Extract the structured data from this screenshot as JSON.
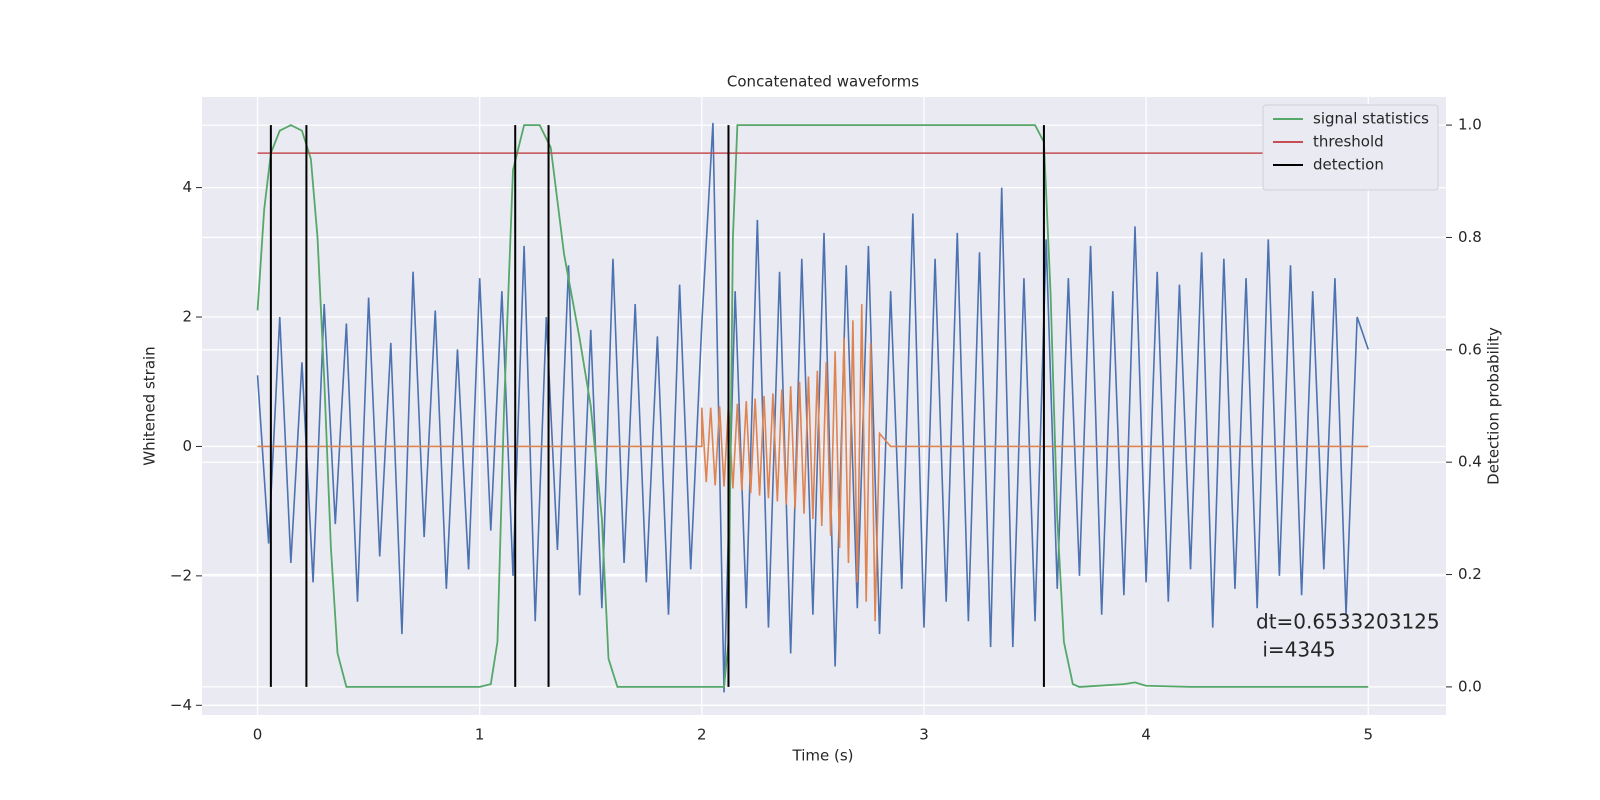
{
  "chart_data": {
    "type": "line",
    "title": "Concatenated waveforms",
    "xlabel": "Time (s)",
    "ylabel": "Whitened strain",
    "y2label": "Detection probability",
    "xlim": [
      -0.25,
      5.35
    ],
    "ylim": [
      -4.15,
      5.4
    ],
    "y2lim": [
      -0.05,
      1.05
    ],
    "xticks": [
      0,
      1,
      2,
      3,
      4,
      5
    ],
    "yticks": [
      {
        "value": -4,
        "label": "−4"
      },
      {
        "value": -2,
        "label": "−2"
      },
      0,
      2,
      4
    ],
    "y2ticks": [
      {
        "value": 0,
        "label": "0.0"
      },
      {
        "value": 0.2,
        "label": "0.2"
      },
      {
        "value": 0.4,
        "label": "0.4"
      },
      {
        "value": 0.6,
        "label": "0.6"
      },
      {
        "value": 0.8,
        "label": "0.8"
      },
      {
        "value": 1,
        "label": "1.0"
      }
    ],
    "grid": true,
    "legend": "upper right",
    "annotation": [
      "dt=0.6533203125",
      " i=4345"
    ],
    "lines": [
      {
        "color": "#4c72b0",
        "x": [
          0,
          0.05,
          0.1,
          0.15,
          0.2,
          0.25,
          0.3,
          0.35,
          0.4,
          0.45,
          0.5,
          0.55,
          0.6,
          0.65,
          0.7,
          0.75,
          0.8,
          0.85,
          0.9,
          0.95,
          1,
          1.05,
          1.1,
          1.15,
          1.2,
          1.25,
          1.3,
          1.35,
          1.4,
          1.45,
          1.5,
          1.55,
          1.6,
          1.65,
          1.7,
          1.75,
          1.8,
          1.85,
          1.9,
          1.95,
          2,
          2.05,
          2.1,
          2.15,
          2.2,
          2.25,
          2.3,
          2.35,
          2.4,
          2.45,
          2.5,
          2.55,
          2.6,
          2.65,
          2.7,
          2.75,
          2.8,
          2.85,
          2.9,
          2.95,
          3,
          3.05,
          3.1,
          3.15,
          3.2,
          3.25,
          3.3,
          3.35,
          3.4,
          3.45,
          3.5,
          3.55,
          3.6,
          3.65,
          3.7,
          3.75,
          3.8,
          3.85,
          3.9,
          3.95,
          4,
          4.05,
          4.1,
          4.15,
          4.2,
          4.25,
          4.3,
          4.35,
          4.4,
          4.45,
          4.5,
          4.55,
          4.6,
          4.65,
          4.7,
          4.75,
          4.8,
          4.85,
          4.9,
          4.95,
          5
        ],
        "values": [
          1.1,
          -1.5,
          2.0,
          -1.8,
          1.3,
          -2.1,
          2.2,
          -1.2,
          1.9,
          -2.4,
          2.3,
          -1.7,
          1.6,
          -2.9,
          2.7,
          -1.4,
          2.1,
          -2.2,
          1.5,
          -1.9,
          2.6,
          -1.3,
          2.4,
          -2.0,
          3.1,
          -2.7,
          2.0,
          -1.6,
          2.8,
          -2.3,
          1.8,
          -2.5,
          2.9,
          -1.8,
          2.2,
          -2.1,
          1.7,
          -2.6,
          2.5,
          -1.9,
          1.9,
          5.0,
          -3.8,
          2.4,
          -2.5,
          3.5,
          -2.8,
          2.7,
          -3.2,
          2.9,
          -2.6,
          3.3,
          -3.4,
          2.8,
          -2.5,
          3.1,
          -2.9,
          2.4,
          -2.2,
          3.6,
          -2.8,
          2.9,
          -2.4,
          3.3,
          -2.7,
          3.0,
          -3.1,
          4.0,
          -3.1,
          2.6,
          -2.7,
          3.2,
          -2.2,
          2.6,
          -2.0,
          3.1,
          -2.6,
          2.4,
          -2.3,
          3.4,
          -2.1,
          2.7,
          -2.4,
          2.5,
          -1.9,
          3.0,
          -2.8,
          2.9,
          -2.2,
          2.6,
          -2.5,
          3.2,
          -2.0,
          2.8,
          -2.3,
          2.4,
          -1.9,
          2.6,
          -2.6,
          2.0,
          1.5
        ]
      },
      {
        "color": "#dd8452",
        "x": [
          0,
          2,
          2,
          2.02,
          2.04,
          2.06,
          2.08,
          2.1,
          2.12,
          2.14,
          2.16,
          2.18,
          2.2,
          2.22,
          2.24,
          2.26,
          2.28,
          2.3,
          2.32,
          2.34,
          2.36,
          2.38,
          2.4,
          2.42,
          2.44,
          2.46,
          2.48,
          2.5,
          2.52,
          2.54,
          2.56,
          2.58,
          2.6,
          2.62,
          2.64,
          2.66,
          2.68,
          2.7,
          2.72,
          2.74,
          2.76,
          2.78,
          2.8,
          2.85,
          5
        ],
        "values": [
          0,
          0,
          0.6,
          -0.55,
          0.6,
          -0.6,
          0.62,
          -0.62,
          0.64,
          -0.65,
          0.66,
          -0.68,
          0.7,
          -0.72,
          0.74,
          -0.76,
          0.78,
          -0.8,
          0.82,
          -0.85,
          0.88,
          -0.9,
          0.93,
          -0.96,
          1.0,
          -1.04,
          1.08,
          -1.12,
          1.17,
          -1.23,
          1.3,
          -1.38,
          1.47,
          -1.57,
          1.68,
          -1.8,
          1.95,
          -2.1,
          2.2,
          -2.4,
          1.6,
          -2.7,
          0.2,
          0,
          0
        ]
      }
    ],
    "series": [
      {
        "name": "signal statistics",
        "color": "#55a868",
        "axis": "y2",
        "x": [
          0,
          0.03,
          0.06,
          0.1,
          0.15,
          0.2,
          0.24,
          0.27,
          0.3,
          0.33,
          0.36,
          0.4,
          1.0,
          1.05,
          1.08,
          1.11,
          1.15,
          1.2,
          1.27,
          1.32,
          1.38,
          1.45,
          1.5,
          1.55,
          1.58,
          1.62,
          2.1,
          2.12,
          2.14,
          2.16,
          3.5,
          3.54,
          3.57,
          3.6,
          3.63,
          3.67,
          3.7,
          3.9,
          3.95,
          4.0,
          4.2,
          5.0
        ],
        "values": [
          0.67,
          0.85,
          0.95,
          0.99,
          1.0,
          0.99,
          0.94,
          0.8,
          0.55,
          0.25,
          0.06,
          0.0,
          0.0,
          0.005,
          0.08,
          0.5,
          0.92,
          1.0,
          1.0,
          0.96,
          0.77,
          0.62,
          0.5,
          0.3,
          0.05,
          0.0,
          0.0,
          0.08,
          0.8,
          1.0,
          1.0,
          0.97,
          0.7,
          0.3,
          0.08,
          0.005,
          0.0,
          0.005,
          0.008,
          0.002,
          0.0,
          0.0
        ]
      },
      {
        "name": "threshold",
        "color": "#c44e52",
        "axis": "y2",
        "x": [
          0,
          5.1
        ],
        "values": [
          0.95,
          0.95
        ]
      },
      {
        "name": "detection",
        "color": "#000000",
        "axis": "y2",
        "x": [
          0.06,
          0.22,
          1.16,
          1.31,
          2.12,
          3.54
        ],
        "span": [
          0,
          1
        ]
      }
    ]
  }
}
